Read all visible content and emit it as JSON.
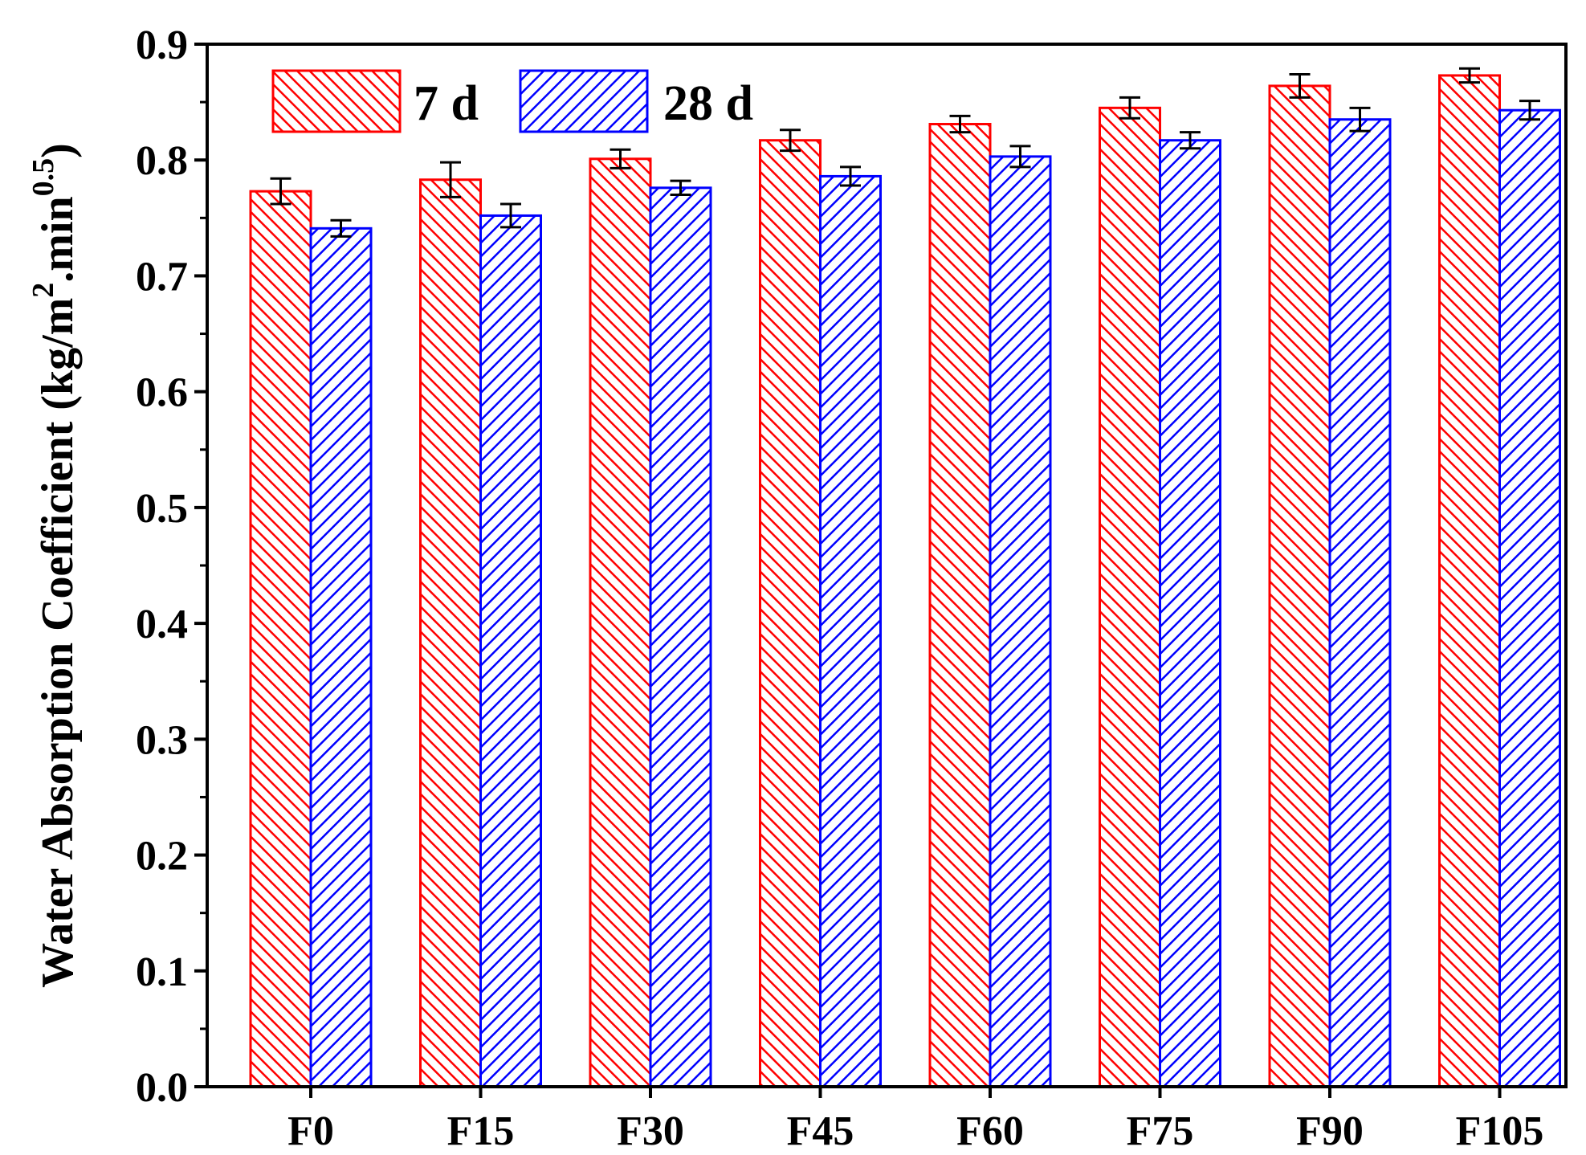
{
  "chart_data": {
    "type": "bar",
    "title": "",
    "xlabel": "",
    "ylabel": {
      "main": "Water Absorption Coefficient (kg/m",
      "sup1": "2",
      "middle": ".min",
      "sup2": "0.5",
      "close": ")"
    },
    "categories": [
      "F0",
      "F15",
      "F30",
      "F45",
      "F60",
      "F75",
      "F90",
      "F105"
    ],
    "series": [
      {
        "name": "7 d",
        "color": "#ff0000",
        "pattern": "hatch-backslash",
        "values": [
          0.773,
          0.783,
          0.801,
          0.817,
          0.831,
          0.845,
          0.864,
          0.873
        ],
        "errors": [
          0.011,
          0.015,
          0.008,
          0.009,
          0.007,
          0.009,
          0.01,
          0.006
        ]
      },
      {
        "name": "28 d",
        "color": "#0000ff",
        "pattern": "hatch-slash",
        "values": [
          0.741,
          0.752,
          0.776,
          0.786,
          0.803,
          0.817,
          0.835,
          0.843
        ],
        "errors": [
          0.007,
          0.01,
          0.006,
          0.008,
          0.009,
          0.007,
          0.01,
          0.008
        ]
      }
    ],
    "ylim": [
      0.0,
      0.9
    ],
    "yticks": [
      "0.0",
      "0.1",
      "0.2",
      "0.3",
      "0.4",
      "0.5",
      "0.6",
      "0.7",
      "0.8",
      "0.9"
    ],
    "grid": false,
    "legend_position": "top-left"
  }
}
